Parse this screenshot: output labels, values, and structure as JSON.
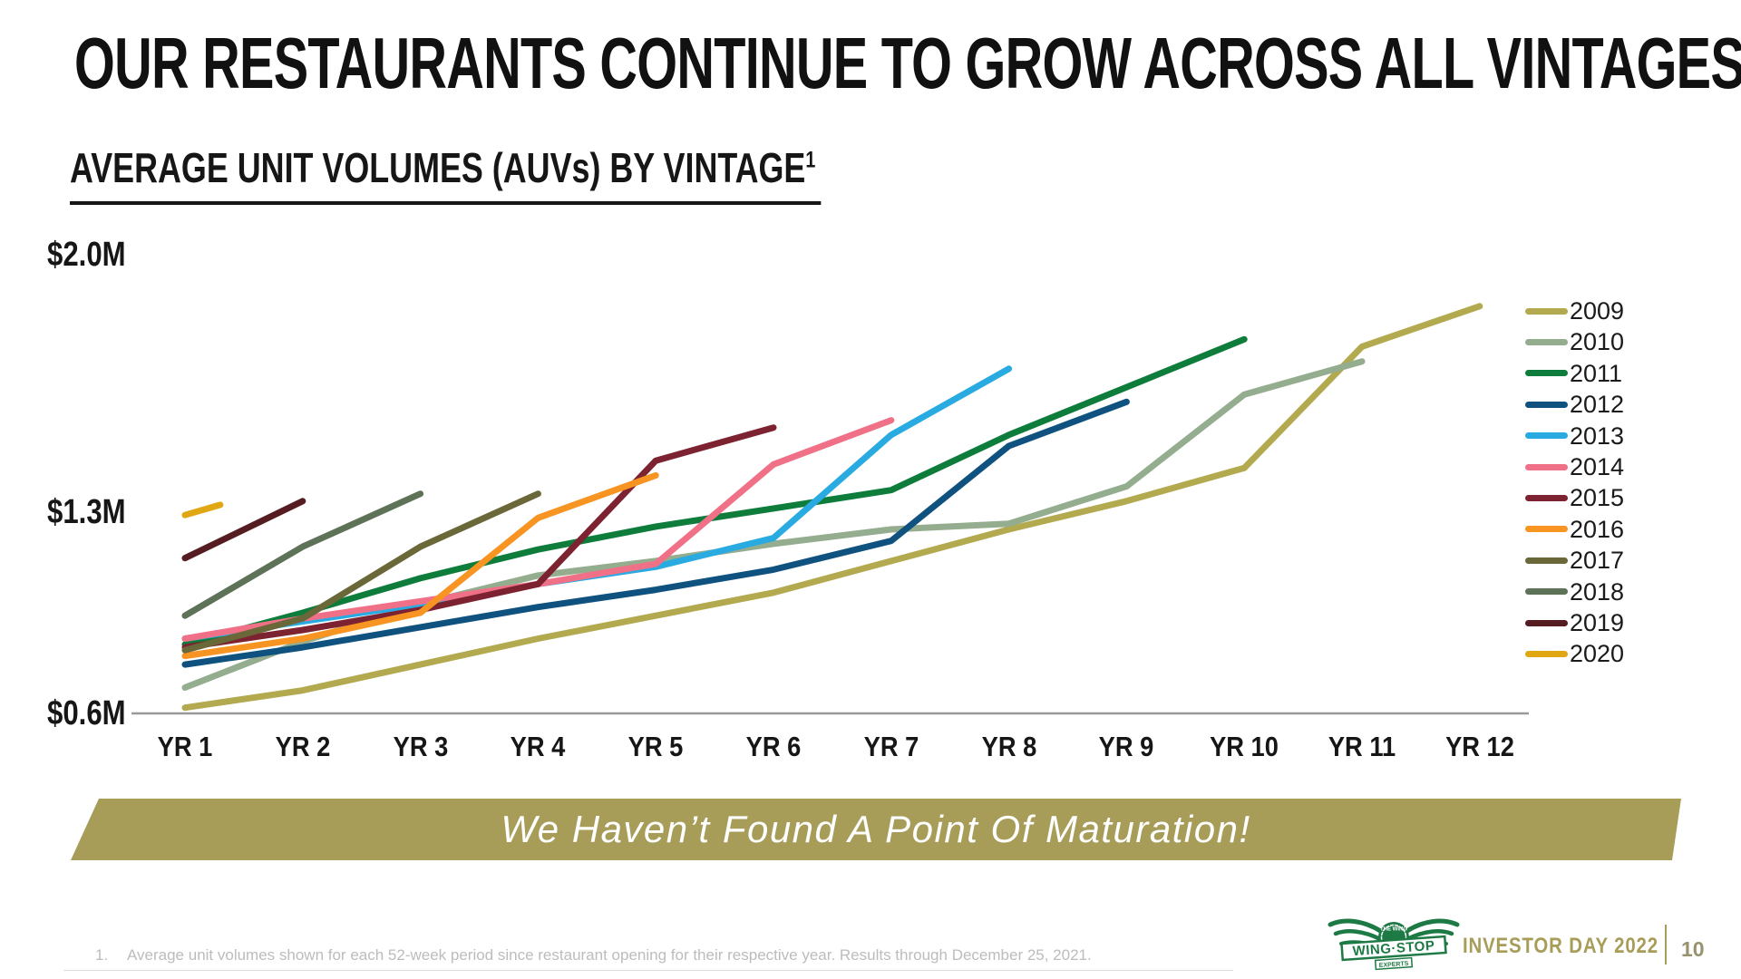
{
  "slide": {
    "title": "OUR RESTAURANTS CONTINUE TO GROW ACROSS ALL VINTAGES",
    "subtitle": "AVERAGE UNIT VOLUMES (AUVs) BY VINTAGE",
    "subtitle_superscript": "1",
    "banner_text": "We Haven’t Found A Point Of Maturation!",
    "footnote_index": "1.",
    "footnote_text": "Average unit volumes shown for each 52-week period since restaurant opening for their respective year. Results through December 25, 2021.",
    "footer": {
      "brand": "WING·STOP",
      "brand_top": "THE WING",
      "brand_bottom": "EXPERTS",
      "event": "INVESTOR DAY 2022",
      "page": "10"
    }
  },
  "colors": {
    "banner_bg": "#a79d58",
    "banner_text": "#ffffff",
    "axis_line": "#999999",
    "footer_gold": "#a79d58",
    "footer_page": "#98926d",
    "logo_green": "#1e7a44",
    "footnote_gray": "#bcbcbc",
    "text_black": "#161616"
  },
  "chart_data": {
    "type": "line",
    "title": "AVERAGE UNIT VOLUMES (AUVs) BY VINTAGE",
    "units": "USD millions",
    "x_categories": [
      "YR 1",
      "YR 2",
      "YR 3",
      "YR 4",
      "YR 5",
      "YR 6",
      "YR 7",
      "YR 8",
      "YR 9",
      "YR 10",
      "YR 11",
      "YR 12"
    ],
    "y_axis_ticks": [
      {
        "label": "$2.0M",
        "value": 2.0
      },
      {
        "label": "$1.3M",
        "value": 1.3
      },
      {
        "label": "$0.6M",
        "value": 0.6
      }
    ],
    "ylim": [
      0.6,
      2.0
    ],
    "grid": false,
    "legend_position": "right",
    "series": [
      {
        "name": "2009",
        "color": "#b3a94f",
        "x_start": 1,
        "values": [
          0.62,
          0.68,
          0.77,
          0.86,
          0.94,
          1.02,
          1.13,
          1.24,
          1.33,
          1.42,
          1.75,
          1.86
        ]
      },
      {
        "name": "2010",
        "color": "#94ad8e",
        "x_start": 1,
        "values": [
          0.69,
          0.85,
          0.98,
          1.08,
          1.13,
          1.19,
          1.24,
          1.26,
          1.37,
          1.62,
          1.71
        ]
      },
      {
        "name": "2011",
        "color": "#0e7d3b",
        "x_start": 1,
        "values": [
          0.84,
          0.95,
          1.07,
          1.17,
          1.25,
          1.31,
          1.36,
          1.51,
          1.64,
          1.77
        ]
      },
      {
        "name": "2012",
        "color": "#10527f",
        "x_start": 1,
        "values": [
          0.77,
          0.83,
          0.9,
          0.97,
          1.03,
          1.1,
          1.2,
          1.48,
          1.6
        ]
      },
      {
        "name": "2013",
        "color": "#29abe2",
        "x_start": 1,
        "values": [
          0.86,
          0.92,
          0.98,
          1.05,
          1.11,
          1.21,
          1.51,
          1.69
        ]
      },
      {
        "name": "2014",
        "color": "#f07187",
        "x_start": 1,
        "values": [
          0.86,
          0.93,
          0.99,
          1.05,
          1.12,
          1.43,
          1.55
        ]
      },
      {
        "name": "2015",
        "color": "#7d2230",
        "x_start": 1,
        "values": [
          0.83,
          0.89,
          0.96,
          1.05,
          1.44,
          1.53
        ]
      },
      {
        "name": "2016",
        "color": "#f79422",
        "x_start": 1,
        "values": [
          0.8,
          0.86,
          0.95,
          1.28,
          1.4
        ]
      },
      {
        "name": "2017",
        "color": "#6a6839",
        "x_start": 1,
        "values": [
          0.82,
          0.93,
          1.18,
          1.35
        ]
      },
      {
        "name": "2018",
        "color": "#5d7257",
        "x_start": 1,
        "values": [
          0.94,
          1.18,
          1.35
        ]
      },
      {
        "name": "2019",
        "color": "#551c22",
        "x_start": 1,
        "values": [
          1.14,
          1.33
        ]
      },
      {
        "name": "2020",
        "color": "#e0a712",
        "x": [
          1,
          1.3
        ],
        "values": [
          1.29,
          1.32
        ]
      }
    ]
  }
}
